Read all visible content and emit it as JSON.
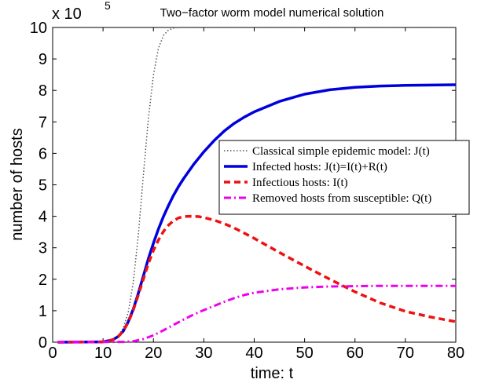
{
  "chart_data": {
    "type": "line",
    "title": "Two−factor worm model numerical solution",
    "xlabel": "time: t",
    "ylabel": "number of hosts",
    "y_multiplier": "x 10",
    "y_exponent": "5",
    "xlim": [
      0,
      80
    ],
    "ylim": [
      0,
      10
    ],
    "xticks": [
      0,
      10,
      20,
      30,
      40,
      50,
      60,
      70,
      80
    ],
    "yticks": [
      0,
      1,
      2,
      3,
      4,
      5,
      6,
      7,
      8,
      9,
      10
    ],
    "grid": false,
    "legend_position": "right",
    "series": [
      {
        "name": "Classical simple epidemic model: J(t)",
        "color": "#555555",
        "style": "dotted",
        "x": [
          1,
          10,
          12,
          13,
          14,
          15,
          16,
          17,
          18,
          19,
          20,
          21,
          22,
          23,
          24,
          25,
          30,
          40,
          50,
          60,
          70,
          80
        ],
        "y": [
          0,
          0.01,
          0.08,
          0.2,
          0.45,
          0.95,
          1.9,
          3.4,
          5.3,
          7.1,
          8.5,
          9.35,
          9.75,
          9.92,
          9.98,
          10,
          10,
          10,
          10,
          10,
          10,
          10
        ]
      },
      {
        "name": "Infected hosts: J(t)=I(t)+R(t)",
        "color": "#0000dd",
        "style": "solid",
        "x": [
          1,
          10,
          12,
          13,
          14,
          15,
          16,
          17,
          18,
          19,
          20,
          21,
          22,
          23,
          24,
          25,
          26,
          28,
          30,
          32,
          34,
          36,
          38,
          40,
          45,
          50,
          55,
          60,
          65,
          70,
          75,
          80
        ],
        "y": [
          0,
          0.01,
          0.08,
          0.18,
          0.35,
          0.65,
          1.05,
          1.55,
          2.1,
          2.65,
          3.15,
          3.6,
          4.0,
          4.35,
          4.67,
          4.95,
          5.2,
          5.65,
          6.05,
          6.4,
          6.7,
          6.95,
          7.15,
          7.32,
          7.65,
          7.88,
          8.02,
          8.1,
          8.14,
          8.16,
          8.17,
          8.18
        ]
      },
      {
        "name": "Infectious hosts: I(t)",
        "color": "#ee1111",
        "style": "dashed",
        "x": [
          1,
          10,
          12,
          13,
          14,
          15,
          16,
          17,
          18,
          19,
          20,
          21,
          22,
          23,
          24,
          25,
          26,
          27,
          28,
          29,
          30,
          32,
          34,
          36,
          38,
          40,
          45,
          50,
          55,
          60,
          65,
          70,
          75,
          80
        ],
        "y": [
          0,
          0.01,
          0.08,
          0.18,
          0.35,
          0.63,
          1.02,
          1.5,
          2.0,
          2.5,
          2.92,
          3.25,
          3.52,
          3.72,
          3.86,
          3.95,
          3.99,
          4.0,
          4.0,
          3.99,
          3.96,
          3.88,
          3.77,
          3.63,
          3.47,
          3.3,
          2.85,
          2.42,
          2.0,
          1.6,
          1.25,
          0.98,
          0.8,
          0.65
        ]
      },
      {
        "name": "Removed hosts from susceptible: Q(t)",
        "color": "#ee00ee",
        "style": "dashdot",
        "x": [
          1,
          14,
          16,
          18,
          20,
          22,
          24,
          26,
          28,
          30,
          32,
          34,
          36,
          38,
          40,
          45,
          50,
          55,
          60,
          65,
          70,
          75,
          80
        ],
        "y": [
          0,
          0.01,
          0.03,
          0.1,
          0.22,
          0.38,
          0.55,
          0.72,
          0.88,
          1.02,
          1.15,
          1.28,
          1.4,
          1.5,
          1.57,
          1.68,
          1.74,
          1.77,
          1.78,
          1.79,
          1.79,
          1.79,
          1.79
        ]
      }
    ]
  }
}
